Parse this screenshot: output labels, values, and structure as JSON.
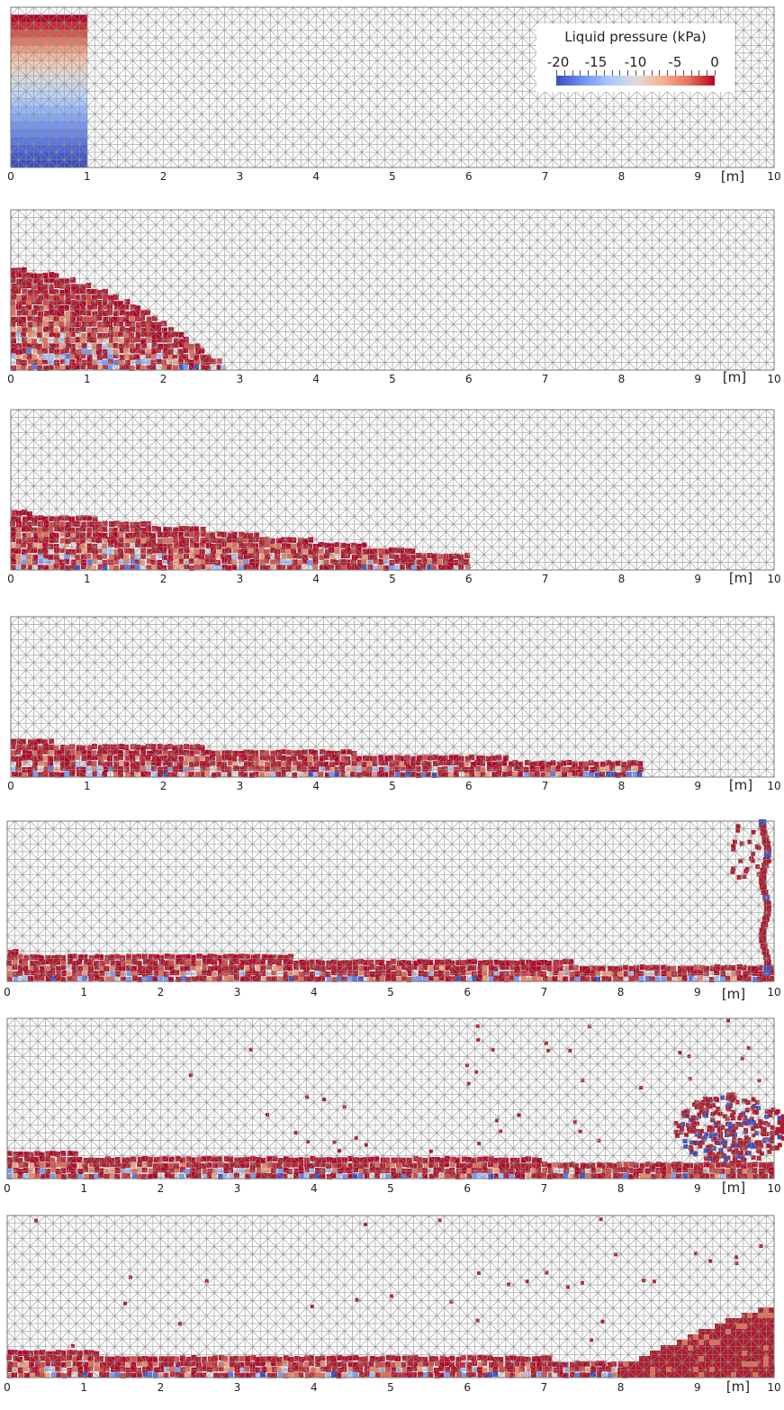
{
  "figure": {
    "x_unit": "[m]",
    "x_ticks": [
      "0",
      "1",
      "2",
      "3",
      "4",
      "5",
      "6",
      "7",
      "8",
      "9",
      "10"
    ],
    "x_range": [
      0,
      10
    ],
    "colors": {
      "mesh": "#8f8f8f",
      "water": "#b01a2c",
      "cold": "#3b4cc0",
      "warm": "#e0715a"
    }
  },
  "legend": {
    "title": "Liquid pressure (kPa)",
    "ticks": [
      "-20",
      "-15",
      "-10",
      "-5",
      "0"
    ],
    "range": [
      -20,
      0
    ],
    "colormap": "coolwarm"
  },
  "panels": [
    {
      "id": "stage-1",
      "front_m": 1.0,
      "height_fraction": 1.0,
      "shape": "column"
    },
    {
      "id": "stage-2",
      "front_m": 2.8,
      "height_fraction": 0.6,
      "shape": "collapsing"
    },
    {
      "id": "stage-3",
      "front_m": 6.0,
      "height_fraction": 0.33,
      "shape": "spreading"
    },
    {
      "id": "stage-4",
      "front_m": 8.3,
      "height_fraction": 0.2,
      "shape": "thin-layer"
    },
    {
      "id": "stage-5",
      "front_m": 10.0,
      "height_fraction": 0.17,
      "shape": "wall-runup"
    },
    {
      "id": "stage-6",
      "front_m": 10.0,
      "height_fraction": 0.14,
      "shape": "splash-back"
    },
    {
      "id": "stage-7",
      "front_m": 10.0,
      "height_fraction": 0.14,
      "shape": "return-wave"
    }
  ]
}
